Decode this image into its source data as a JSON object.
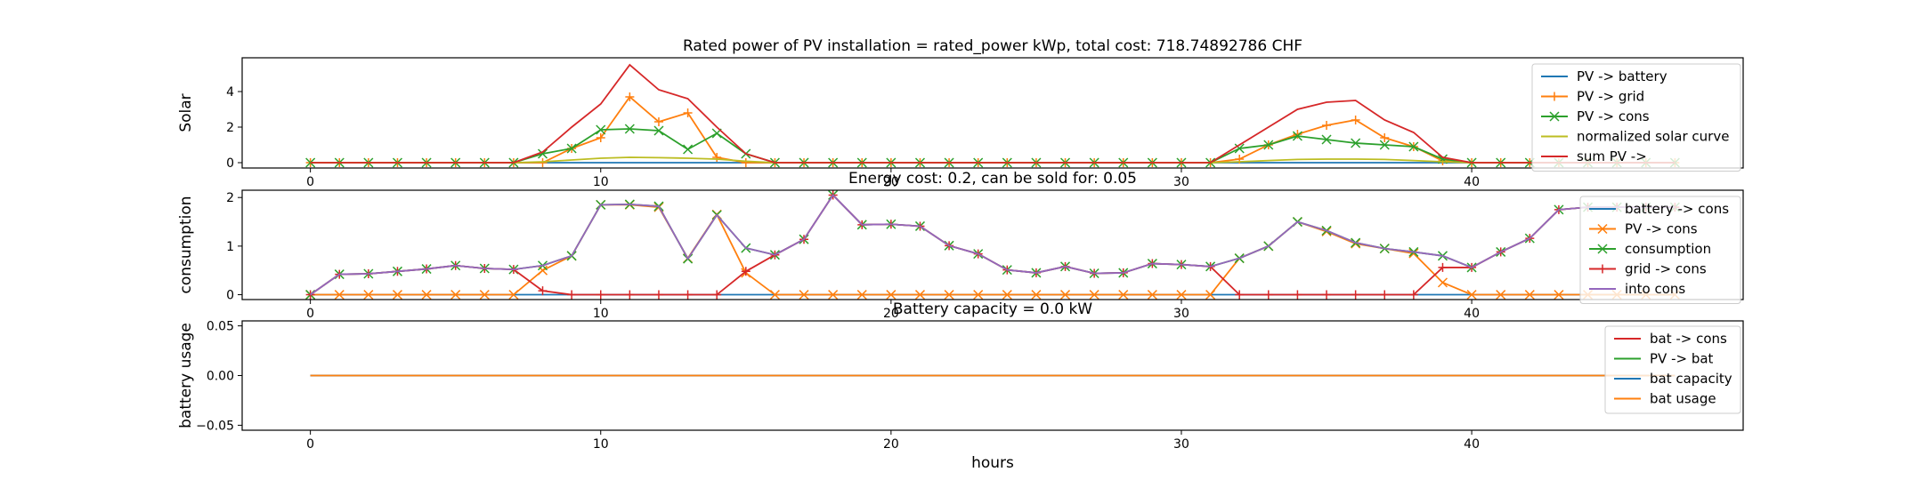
{
  "chart_data": [
    {
      "type": "line",
      "title": "Rated power of PV installation = rated_power kWp, total cost: 718.74892786 CHF",
      "xlabel": "",
      "ylabel": "Solar",
      "xlim": [
        -2.35,
        49.35
      ],
      "ylim": [
        -0.3,
        5.9
      ],
      "xticks": [
        0,
        10,
        20,
        30,
        40
      ],
      "yticks": [
        0,
        2,
        4
      ],
      "legend_position": "top-right",
      "x": [
        0,
        1,
        2,
        3,
        4,
        5,
        6,
        7,
        8,
        9,
        10,
        11,
        12,
        13,
        14,
        15,
        16,
        17,
        18,
        19,
        20,
        21,
        22,
        23,
        24,
        25,
        26,
        27,
        28,
        29,
        30,
        31,
        32,
        33,
        34,
        35,
        36,
        37,
        38,
        39,
        40,
        41,
        42,
        43,
        44,
        45,
        46,
        47
      ],
      "series": [
        {
          "name": "PV -> battery",
          "color": "#1f77b4",
          "marker": "none",
          "values": [
            0,
            0,
            0,
            0,
            0,
            0,
            0,
            0,
            0,
            0,
            0,
            0,
            0,
            0,
            0,
            0,
            0,
            0,
            0,
            0,
            0,
            0,
            0,
            0,
            0,
            0,
            0,
            0,
            0,
            0,
            0,
            0,
            0,
            0,
            0,
            0,
            0,
            0,
            0,
            0,
            0,
            0,
            0,
            0,
            0,
            0,
            0,
            0
          ]
        },
        {
          "name": "PV -> grid",
          "color": "#ff7f0e",
          "marker": "plus",
          "values": [
            0,
            0,
            0,
            0,
            0,
            0,
            0,
            0,
            0,
            0.8,
            1.4,
            3.7,
            2.3,
            2.8,
            0.3,
            0,
            0,
            0,
            0,
            0,
            0,
            0,
            0,
            0,
            0,
            0,
            0,
            0,
            0,
            0,
            0,
            0,
            0.2,
            1.0,
            1.6,
            2.1,
            2.4,
            1.4,
            0.9,
            0.1,
            0,
            0,
            0,
            0,
            0,
            0,
            0,
            0
          ]
        },
        {
          "name": "PV -> cons",
          "color": "#2ca02c",
          "marker": "x",
          "values": [
            0,
            0,
            0,
            0,
            0,
            0,
            0,
            0,
            0.5,
            0.8,
            1.85,
            1.9,
            1.8,
            0.75,
            1.65,
            0.5,
            0,
            0,
            0,
            0,
            0,
            0,
            0,
            0,
            0,
            0,
            0,
            0,
            0,
            0,
            0,
            0,
            0.8,
            1.0,
            1.5,
            1.3,
            1.1,
            1.0,
            0.9,
            0.2,
            0,
            0,
            0,
            0,
            0,
            0,
            0,
            0
          ]
        },
        {
          "name": "normalized solar curve",
          "color": "#bcbd22",
          "marker": "none",
          "values": [
            0,
            0,
            0,
            0,
            0,
            0,
            0,
            0,
            0.05,
            0.15,
            0.25,
            0.3,
            0.28,
            0.25,
            0.2,
            0.08,
            0,
            0,
            0,
            0,
            0,
            0,
            0,
            0,
            0,
            0,
            0,
            0,
            0,
            0,
            0,
            0,
            0.05,
            0.12,
            0.18,
            0.2,
            0.2,
            0.18,
            0.12,
            0.05,
            0,
            0,
            0,
            0,
            0,
            0,
            0,
            0
          ]
        },
        {
          "name": "sum PV ->",
          "color": "#d62728",
          "marker": "none",
          "values": [
            0,
            0,
            0,
            0,
            0,
            0,
            0,
            0,
            0.6,
            2.0,
            3.3,
            5.5,
            4.1,
            3.6,
            2.0,
            0.5,
            0,
            0,
            0,
            0,
            0,
            0,
            0,
            0,
            0,
            0,
            0,
            0,
            0,
            0,
            0,
            0,
            1.0,
            2.0,
            3.0,
            3.4,
            3.5,
            2.4,
            1.7,
            0.3,
            0,
            0,
            0,
            0,
            0,
            0,
            0,
            0
          ]
        }
      ]
    },
    {
      "type": "line",
      "title": "Energy cost: 0.2, can be sold for: 0.05",
      "xlabel": "",
      "ylabel": "consumption",
      "xlim": [
        -2.35,
        49.35
      ],
      "ylim": [
        -0.1,
        2.15
      ],
      "xticks": [
        0,
        10,
        20,
        30,
        40
      ],
      "yticks": [
        0,
        1,
        2
      ],
      "legend_position": "top-right",
      "x": [
        0,
        1,
        2,
        3,
        4,
        5,
        6,
        7,
        8,
        9,
        10,
        11,
        12,
        13,
        14,
        15,
        16,
        17,
        18,
        19,
        20,
        21,
        22,
        23,
        24,
        25,
        26,
        27,
        28,
        29,
        30,
        31,
        32,
        33,
        34,
        35,
        36,
        37,
        38,
        39,
        40,
        41,
        42,
        43,
        44,
        45,
        46,
        47
      ],
      "series": [
        {
          "name": "battery -> cons",
          "color": "#1f77b4",
          "marker": "none",
          "values": [
            0,
            0,
            0,
            0,
            0,
            0,
            0,
            0,
            0,
            0,
            0,
            0,
            0,
            0,
            0,
            0,
            0,
            0,
            0,
            0,
            0,
            0,
            0,
            0,
            0,
            0,
            0,
            0,
            0,
            0,
            0,
            0,
            0,
            0,
            0,
            0,
            0,
            0,
            0,
            0,
            0,
            0,
            0,
            0,
            0,
            0,
            0,
            0
          ]
        },
        {
          "name": "PV -> cons",
          "color": "#ff7f0e",
          "marker": "x",
          "values": [
            0,
            0,
            0,
            0,
            0,
            0,
            0,
            0,
            0.5,
            0.8,
            1.85,
            1.85,
            1.8,
            0.75,
            1.65,
            0.45,
            0,
            0,
            0,
            0,
            0,
            0,
            0,
            0,
            0,
            0,
            0,
            0,
            0,
            0,
            0,
            0,
            0.75,
            1.0,
            1.5,
            1.3,
            1.05,
            0.95,
            0.85,
            0.25,
            0,
            0,
            0,
            0,
            0,
            0,
            0,
            0
          ]
        },
        {
          "name": "consumption",
          "color": "#2ca02c",
          "marker": "x",
          "values": [
            0,
            0.42,
            0.43,
            0.48,
            0.53,
            0.6,
            0.54,
            0.52,
            0.6,
            0.8,
            1.85,
            1.86,
            1.82,
            0.74,
            1.64,
            0.96,
            0.82,
            1.14,
            2.05,
            1.44,
            1.45,
            1.41,
            1.01,
            0.84,
            0.51,
            0.45,
            0.58,
            0.44,
            0.45,
            0.64,
            0.62,
            0.58,
            0.75,
            1.0,
            1.5,
            1.32,
            1.07,
            0.95,
            0.88,
            0.8,
            0.56,
            0.88,
            1.16,
            1.75,
            1.8,
            1.8,
            1.8,
            1.8
          ]
        },
        {
          "name": "grid -> cons",
          "color": "#d62728",
          "marker": "plus",
          "values": [
            0,
            0.42,
            0.43,
            0.48,
            0.53,
            0.6,
            0.54,
            0.52,
            0.08,
            0,
            0,
            0,
            0,
            0,
            0,
            0.48,
            0.82,
            1.14,
            2.05,
            1.44,
            1.45,
            1.41,
            1.01,
            0.84,
            0.51,
            0.45,
            0.58,
            0.44,
            0.45,
            0.64,
            0.62,
            0.58,
            0,
            0,
            0,
            0,
            0,
            0,
            0,
            0.56,
            0.56,
            0.88,
            1.16,
            1.75,
            1.8,
            1.8,
            1.8,
            1.8
          ]
        },
        {
          "name": "into cons",
          "color": "#9467bd",
          "marker": "none",
          "values": [
            0,
            0.42,
            0.43,
            0.48,
            0.53,
            0.6,
            0.54,
            0.52,
            0.6,
            0.8,
            1.85,
            1.86,
            1.82,
            0.74,
            1.64,
            0.96,
            0.82,
            1.14,
            2.05,
            1.44,
            1.45,
            1.41,
            1.01,
            0.84,
            0.51,
            0.45,
            0.58,
            0.44,
            0.45,
            0.64,
            0.62,
            0.58,
            0.75,
            1.0,
            1.5,
            1.32,
            1.07,
            0.95,
            0.88,
            0.8,
            0.56,
            0.88,
            1.16,
            1.75,
            1.8,
            1.8,
            1.8,
            1.8
          ]
        }
      ]
    },
    {
      "type": "line",
      "title": "Battery capacity = 0.0 kW",
      "xlabel": "hours",
      "ylabel": "battery usage",
      "xlim": [
        -2.35,
        49.35
      ],
      "ylim": [
        -0.055,
        0.055
      ],
      "xticks": [
        0,
        10,
        20,
        30,
        40
      ],
      "yticks": [
        -0.05,
        0.0,
        0.05
      ],
      "yticklabels": [
        "−0.05",
        "0.00",
        "0.05"
      ],
      "legend_position": "top-right",
      "x": [
        0,
        1,
        2,
        3,
        4,
        5,
        6,
        7,
        8,
        9,
        10,
        11,
        12,
        13,
        14,
        15,
        16,
        17,
        18,
        19,
        20,
        21,
        22,
        23,
        24,
        25,
        26,
        27,
        28,
        29,
        30,
        31,
        32,
        33,
        34,
        35,
        36,
        37,
        38,
        39,
        40,
        41,
        42,
        43,
        44,
        45,
        46,
        47
      ],
      "series": [
        {
          "name": "bat -> cons",
          "color": "#d62728",
          "marker": "none",
          "values": [
            0,
            0,
            0,
            0,
            0,
            0,
            0,
            0,
            0,
            0,
            0,
            0,
            0,
            0,
            0,
            0,
            0,
            0,
            0,
            0,
            0,
            0,
            0,
            0,
            0,
            0,
            0,
            0,
            0,
            0,
            0,
            0,
            0,
            0,
            0,
            0,
            0,
            0,
            0,
            0,
            0,
            0,
            0,
            0,
            0,
            0,
            0,
            0
          ]
        },
        {
          "name": "PV -> bat",
          "color": "#2ca02c",
          "marker": "none",
          "values": [
            0,
            0,
            0,
            0,
            0,
            0,
            0,
            0,
            0,
            0,
            0,
            0,
            0,
            0,
            0,
            0,
            0,
            0,
            0,
            0,
            0,
            0,
            0,
            0,
            0,
            0,
            0,
            0,
            0,
            0,
            0,
            0,
            0,
            0,
            0,
            0,
            0,
            0,
            0,
            0,
            0,
            0,
            0,
            0,
            0,
            0,
            0,
            0
          ]
        },
        {
          "name": "bat capacity",
          "color": "#1f77b4",
          "marker": "none",
          "values": [
            0,
            0,
            0,
            0,
            0,
            0,
            0,
            0,
            0,
            0,
            0,
            0,
            0,
            0,
            0,
            0,
            0,
            0,
            0,
            0,
            0,
            0,
            0,
            0,
            0,
            0,
            0,
            0,
            0,
            0,
            0,
            0,
            0,
            0,
            0,
            0,
            0,
            0,
            0,
            0,
            0,
            0,
            0,
            0,
            0,
            0,
            0,
            0
          ]
        },
        {
          "name": "bat usage",
          "color": "#ff7f0e",
          "marker": "none",
          "values": [
            0,
            0,
            0,
            0,
            0,
            0,
            0,
            0,
            0,
            0,
            0,
            0,
            0,
            0,
            0,
            0,
            0,
            0,
            0,
            0,
            0,
            0,
            0,
            0,
            0,
            0,
            0,
            0,
            0,
            0,
            0,
            0,
            0,
            0,
            0,
            0,
            0,
            0,
            0,
            0,
            0,
            0,
            0,
            0,
            0,
            0,
            0,
            0
          ]
        }
      ]
    }
  ]
}
